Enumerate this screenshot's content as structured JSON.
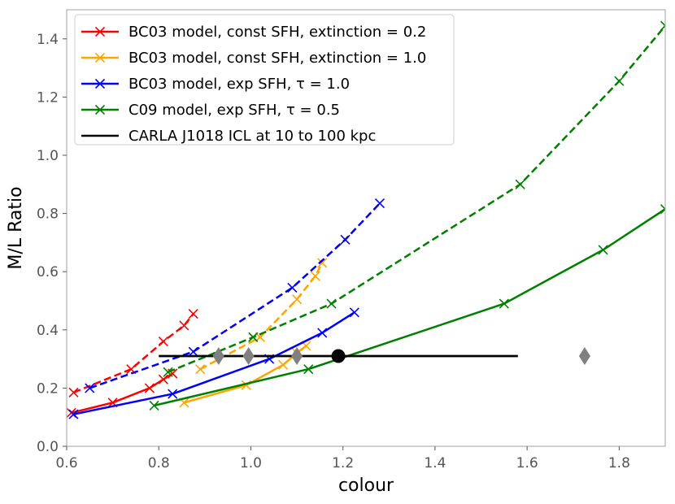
{
  "chart_data": {
    "type": "line",
    "title": "",
    "xlabel": "colour",
    "ylabel": "M/L Ratio",
    "xlim": [
      0.6,
      1.9
    ],
    "ylim": [
      0.0,
      1.5
    ],
    "xticks": [
      0.6,
      0.8,
      1.0,
      1.2,
      1.4,
      1.6,
      1.8
    ],
    "xtick_labels": [
      "0.6",
      "0.8",
      "1.0",
      "1.2",
      "1.4",
      "1.6",
      "1.8"
    ],
    "yticks": [
      0.0,
      0.2,
      0.4,
      0.6,
      0.8,
      1.0,
      1.2,
      1.4
    ],
    "ytick_labels": [
      "0.0",
      "0.2",
      "0.4",
      "0.6",
      "0.8",
      "1.0",
      "1.2",
      "1.4"
    ],
    "grid": false,
    "legend_position": "top-left",
    "series": [
      {
        "name": "BC03 model, const SFH, extinction = 0.2",
        "color": "#ff0000",
        "solid": {
          "x": [
            0.61,
            0.7,
            0.78,
            0.81,
            0.83
          ],
          "y": [
            0.115,
            0.15,
            0.2,
            0.23,
            0.25
          ]
        },
        "dashed": {
          "x": [
            0.615,
            0.74,
            0.81,
            0.855,
            0.875
          ],
          "y": [
            0.185,
            0.265,
            0.36,
            0.415,
            0.455
          ]
        }
      },
      {
        "name": "BC03 model, const SFH, extinction = 1.0",
        "color": "#ffa500",
        "solid": {
          "x": [
            0.855,
            0.99,
            1.07,
            1.1,
            1.12
          ],
          "y": [
            0.15,
            0.21,
            0.28,
            0.32,
            0.345
          ]
        },
        "dashed": {
          "x": [
            0.89,
            1.02,
            1.1,
            1.14,
            1.155
          ],
          "y": [
            0.265,
            0.375,
            0.505,
            0.585,
            0.63
          ]
        }
      },
      {
        "name": "BC03 model, exp SFH, τ = 1.0",
        "color": "#0000ff",
        "solid": {
          "x": [
            0.615,
            0.83,
            1.04,
            1.155,
            1.225
          ],
          "y": [
            0.11,
            0.18,
            0.3,
            0.39,
            0.46
          ]
        },
        "dashed": {
          "x": [
            0.65,
            0.875,
            1.09,
            1.205,
            1.28
          ],
          "y": [
            0.2,
            0.325,
            0.545,
            0.71,
            0.835
          ]
        }
      },
      {
        "name": "C09 model, exp SFH, τ = 0.5",
        "color": "#008000",
        "solid": {
          "x": [
            0.79,
            1.125,
            1.55,
            1.765,
            1.9
          ],
          "y": [
            0.14,
            0.265,
            0.49,
            0.675,
            0.815
          ]
        },
        "dashed": {
          "x": [
            0.82,
            1.005,
            1.175,
            1.585,
            1.8,
            1.9
          ],
          "y": [
            0.255,
            0.375,
            0.49,
            0.9,
            1.255,
            1.445
          ]
        }
      }
    ],
    "observation": {
      "name": "CARLA J1018 ICL at 10 to 100 kpc",
      "color": "#000000",
      "line_x": [
        0.8,
        1.58
      ],
      "line_y": 0.31,
      "point": {
        "x": 1.19,
        "y": 0.31
      },
      "diamonds_color": "#808080",
      "diamonds": [
        {
          "x": 0.93,
          "y": 0.31
        },
        {
          "x": 0.995,
          "y": 0.31
        },
        {
          "x": 1.1,
          "y": 0.31
        },
        {
          "x": 1.725,
          "y": 0.31
        }
      ]
    }
  }
}
